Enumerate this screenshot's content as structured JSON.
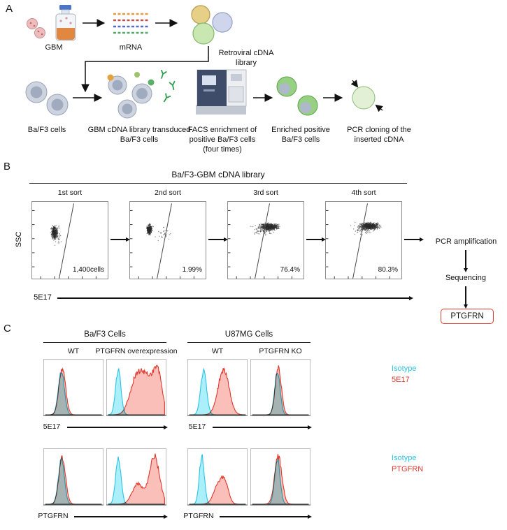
{
  "panelA": {
    "label": "A",
    "items": {
      "gbm": "GBM",
      "mrna": "mRNA",
      "library": "Retroviral cDNA library",
      "baf3": "Ba/F3 cells",
      "transduced": "GBM cDNA library transduced Ba/F3 cells",
      "facs": "FACS enrichment of positive Ba/F3 cells (four times)",
      "enriched": "Enriched positive Ba/F3 cells",
      "pcr": "PCR cloning of the inserted cDNA"
    }
  },
  "panelB": {
    "label": "B",
    "title": "Ba/F3-GBM cDNA library",
    "y_axis": "SSC",
    "x_axis": "5E17",
    "steps": {
      "pcr": "PCR amplification",
      "seq": "Sequencing",
      "result": "PTGFRN"
    },
    "result_box_color": "#e0392e"
  },
  "panelC": {
    "label": "C",
    "groups": [
      {
        "name": "Ba/F3 Cells",
        "col1": "WT",
        "col2": "PTGFRN overexpression"
      },
      {
        "name": "U87MG Cells",
        "col1": "WT",
        "col2": "PTGFRN KO"
      }
    ],
    "legend_top": {
      "isotype": "Isotype",
      "stain": "5E17"
    },
    "legend_bottom": {
      "isotype": "Isotype",
      "stain": "PTGFRN"
    },
    "x_axis_top": "5E17",
    "x_axis_bottom": "PTGFRN",
    "colors": {
      "isotype_fill": "#8ee9f7",
      "isotype_stroke": "#2bc4e4",
      "stain_fill": "#f7a9a0",
      "stain_stroke": "#e0392e"
    }
  },
  "chart_data": {
    "flow_sorts": {
      "type": "scatter",
      "title": "Ba/F3-GBM cDNA library",
      "xlabel": "5E17",
      "ylabel": "SSC",
      "plots": [
        {
          "name": "1st sort",
          "annotation": "1,400cells",
          "clusters": [
            {
              "cx": 0.3,
              "cy": 0.4,
              "sx": 0.055,
              "sy": 0.105,
              "n": 420
            },
            {
              "cx": 0.32,
              "cy": 0.44,
              "sx": 0.1,
              "sy": 0.18,
              "n": 50
            }
          ],
          "gate": {
            "x1": 0.36,
            "y1": 0.99,
            "x2": 0.55,
            "y2": 0.03
          }
        },
        {
          "name": "2nd sort",
          "annotation": "1.99%",
          "clusters": [
            {
              "cx": 0.26,
              "cy": 0.36,
              "sx": 0.045,
              "sy": 0.085,
              "n": 360
            },
            {
              "cx": 0.42,
              "cy": 0.42,
              "sx": 0.17,
              "sy": 0.16,
              "n": 28
            }
          ],
          "gate": {
            "x1": 0.36,
            "y1": 0.99,
            "x2": 0.55,
            "y2": 0.03
          }
        },
        {
          "name": "3rd sort",
          "annotation": "76.4%",
          "clusters": [
            {
              "cx": 0.55,
              "cy": 0.33,
              "sx": 0.155,
              "sy": 0.06,
              "n": 620
            },
            {
              "cx": 0.48,
              "cy": 0.36,
              "sx": 0.2,
              "sy": 0.11,
              "n": 90
            }
          ],
          "gate": {
            "x1": 0.36,
            "y1": 0.99,
            "x2": 0.55,
            "y2": 0.03
          }
        },
        {
          "name": "4th sort",
          "annotation": "80.3%",
          "clusters": [
            {
              "cx": 0.58,
              "cy": 0.32,
              "sx": 0.16,
              "sy": 0.058,
              "n": 680
            },
            {
              "cx": 0.5,
              "cy": 0.35,
              "sx": 0.2,
              "sy": 0.1,
              "n": 90
            }
          ],
          "gate": {
            "x1": 0.36,
            "y1": 0.99,
            "x2": 0.55,
            "y2": 0.03
          }
        }
      ]
    },
    "histograms": {
      "type": "area",
      "description": "Flow cytometry staining histograms (x = fluorescence, y = count)",
      "plots": [
        {
          "group": "Ba/F3 Cells",
          "condition": "WT",
          "stain": "5E17",
          "series": [
            {
              "role": "isotype",
              "peaks": [
                {
                  "x": 0.3,
                  "w": 0.05,
                  "h": 0.88
                }
              ]
            },
            {
              "role": "stain",
              "peaks": [
                {
                  "x": 0.315,
                  "w": 0.055,
                  "h": 0.92
                }
              ]
            }
          ]
        },
        {
          "group": "Ba/F3 Cells",
          "condition": "PTGFRN overexpression",
          "stain": "5E17",
          "series": [
            {
              "role": "isotype",
              "peaks": [
                {
                  "x": 0.2,
                  "w": 0.045,
                  "h": 0.9
                }
              ]
            },
            {
              "role": "stain",
              "peaks": [
                {
                  "x": 0.48,
                  "w": 0.1,
                  "h": 0.55
                },
                {
                  "x": 0.68,
                  "w": 0.13,
                  "h": 0.72
                },
                {
                  "x": 0.86,
                  "w": 0.07,
                  "h": 0.65
                }
              ]
            }
          ]
        },
        {
          "group": "U87MG Cells",
          "condition": "WT",
          "stain": "5E17",
          "series": [
            {
              "role": "isotype",
              "peaks": [
                {
                  "x": 0.27,
                  "w": 0.05,
                  "h": 0.86
                }
              ]
            },
            {
              "role": "stain",
              "peaks": [
                {
                  "x": 0.6,
                  "w": 0.09,
                  "h": 0.9
                }
              ]
            }
          ]
        },
        {
          "group": "U87MG Cells",
          "condition": "PTGFRN KO",
          "stain": "5E17",
          "series": [
            {
              "role": "isotype",
              "peaks": [
                {
                  "x": 0.45,
                  "w": 0.045,
                  "h": 0.88
                }
              ]
            },
            {
              "role": "stain",
              "peaks": [
                {
                  "x": 0.465,
                  "w": 0.05,
                  "h": 0.95
                }
              ]
            }
          ]
        },
        {
          "group": "Ba/F3 Cells",
          "condition": "WT",
          "stain": "PTGFRN",
          "series": [
            {
              "role": "isotype",
              "peaks": [
                {
                  "x": 0.3,
                  "w": 0.05,
                  "h": 0.88
                }
              ]
            },
            {
              "role": "stain",
              "peaks": [
                {
                  "x": 0.315,
                  "w": 0.055,
                  "h": 0.93
                }
              ]
            }
          ]
        },
        {
          "group": "Ba/F3 Cells",
          "condition": "PTGFRN overexpression",
          "stain": "PTGFRN",
          "series": [
            {
              "role": "isotype",
              "peaks": [
                {
                  "x": 0.2,
                  "w": 0.045,
                  "h": 0.9
                }
              ]
            },
            {
              "role": "stain",
              "peaks": [
                {
                  "x": 0.52,
                  "w": 0.09,
                  "h": 0.4
                },
                {
                  "x": 0.8,
                  "w": 0.085,
                  "h": 0.95
                }
              ]
            }
          ]
        },
        {
          "group": "U87MG Cells",
          "condition": "WT",
          "stain": "PTGFRN",
          "series": [
            {
              "role": "isotype",
              "peaks": [
                {
                  "x": 0.24,
                  "w": 0.042,
                  "h": 0.95
                }
              ]
            },
            {
              "role": "stain",
              "peaks": [
                {
                  "x": 0.52,
                  "w": 0.08,
                  "h": 0.4
                },
                {
                  "x": 0.63,
                  "w": 0.06,
                  "h": 0.33
                }
              ]
            }
          ]
        },
        {
          "group": "U87MG Cells",
          "condition": "PTGFRN KO",
          "stain": "PTGFRN",
          "series": [
            {
              "role": "isotype",
              "peaks": [
                {
                  "x": 0.45,
                  "w": 0.045,
                  "h": 0.9
                }
              ]
            },
            {
              "role": "stain",
              "peaks": [
                {
                  "x": 0.465,
                  "w": 0.06,
                  "h": 0.95
                }
              ]
            }
          ]
        }
      ]
    }
  }
}
